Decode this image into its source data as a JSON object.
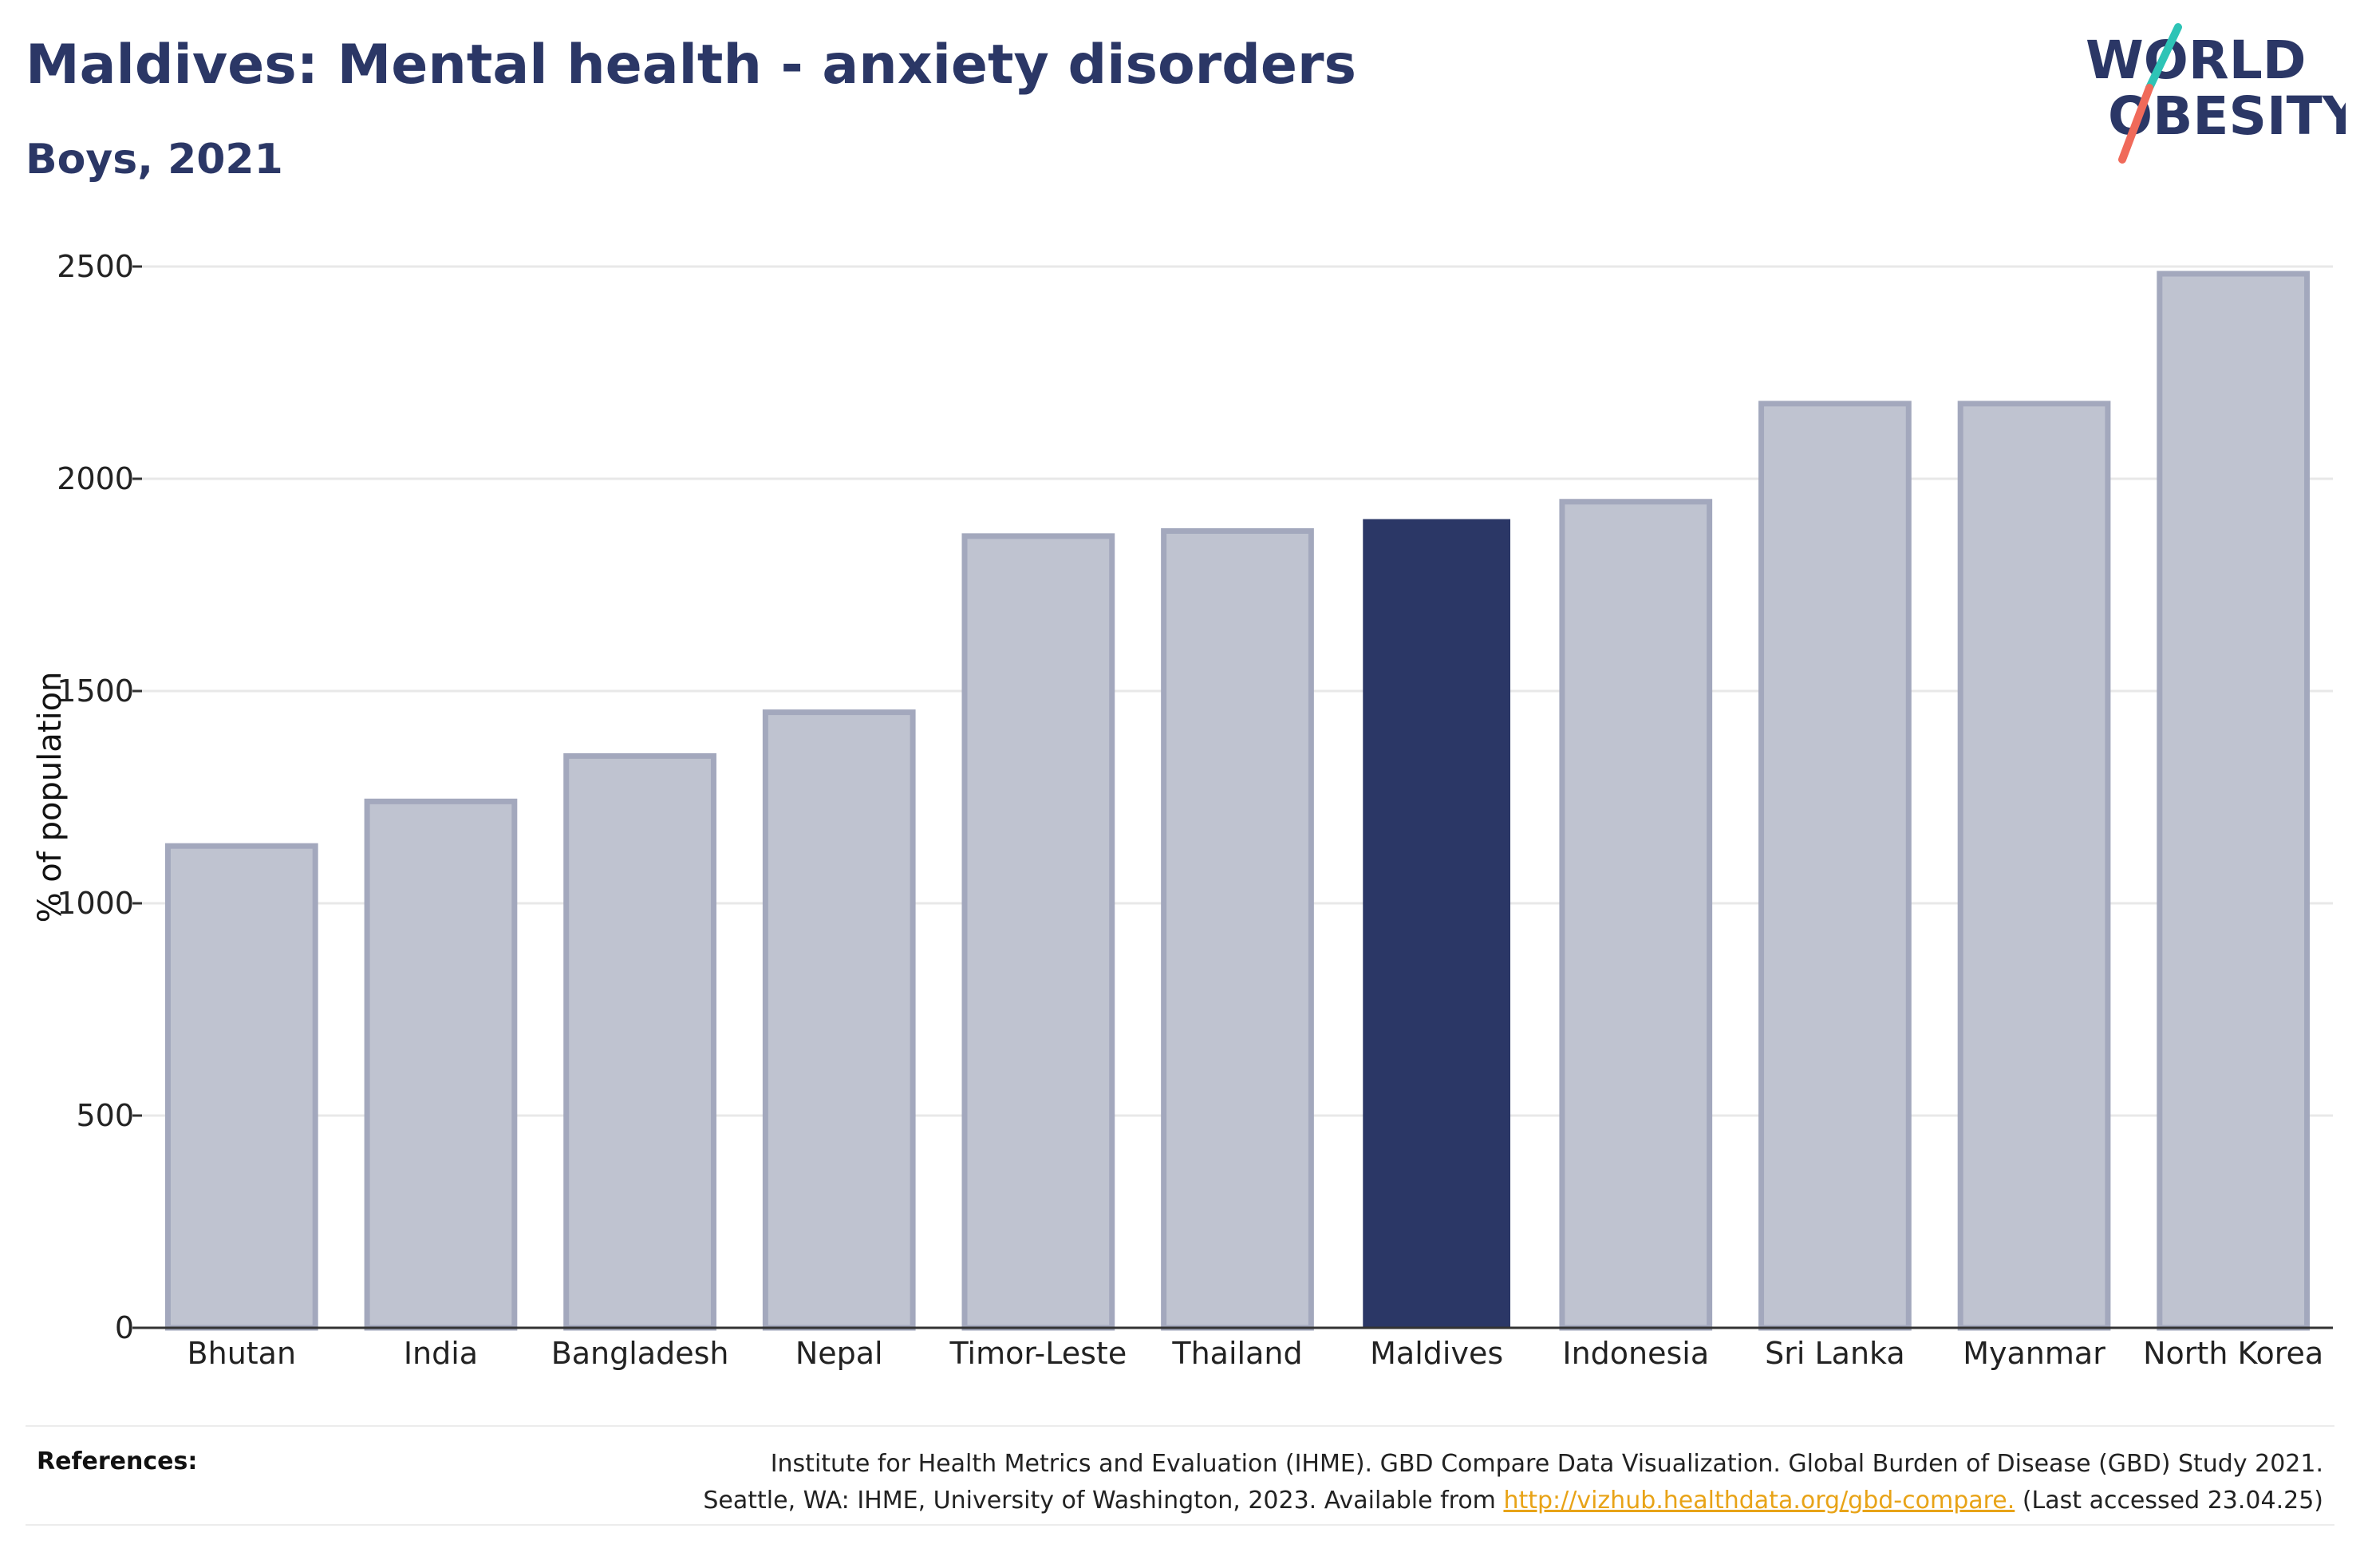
{
  "header": {
    "title": "Maldives: Mental health - anxiety disorders",
    "subtitle": "Boys, 2021"
  },
  "logo": {
    "line1": "WORLD",
    "line2": "OBESITY",
    "colors": {
      "text": "#2b3766",
      "slash_top": "#2ec4b6",
      "slash_bottom": "#f06a5a"
    }
  },
  "chart_data": {
    "type": "bar",
    "ylabel": "% of population",
    "xlabel": "",
    "ylim": [
      0,
      2500
    ],
    "yticks": [
      0,
      500,
      1000,
      1500,
      2000,
      2500
    ],
    "grid": true,
    "categories": [
      "Bhutan",
      "India",
      "Bangladesh",
      "Nepal",
      "Timor-Leste",
      "Thailand",
      "Maldives",
      "Indonesia",
      "Sri Lanka",
      "Myanmar",
      "North Korea"
    ],
    "values": [
      1135,
      1240,
      1347,
      1450,
      1865,
      1877,
      1905,
      1946,
      2177,
      2177,
      2483
    ],
    "highlight": "Maldives",
    "colors": {
      "highlight": "#2b3766",
      "others": "#bfc3d0",
      "others_border": "#a3a8bd",
      "grid": "#e8e8e8",
      "axis": "#333333"
    }
  },
  "references": {
    "label": "References:",
    "line1": "Institute for Health Metrics and Evaluation (IHME). GBD Compare Data Visualization. Global Burden of Disease (GBD) Study 2021.",
    "line2_prefix": "Seattle, WA: IHME, University of Washington, 2023. Available from ",
    "link_text": "http://vizhub.healthdata.org/gbd-compare.",
    "line2_suffix": " (Last accessed 23.04.25)"
  }
}
